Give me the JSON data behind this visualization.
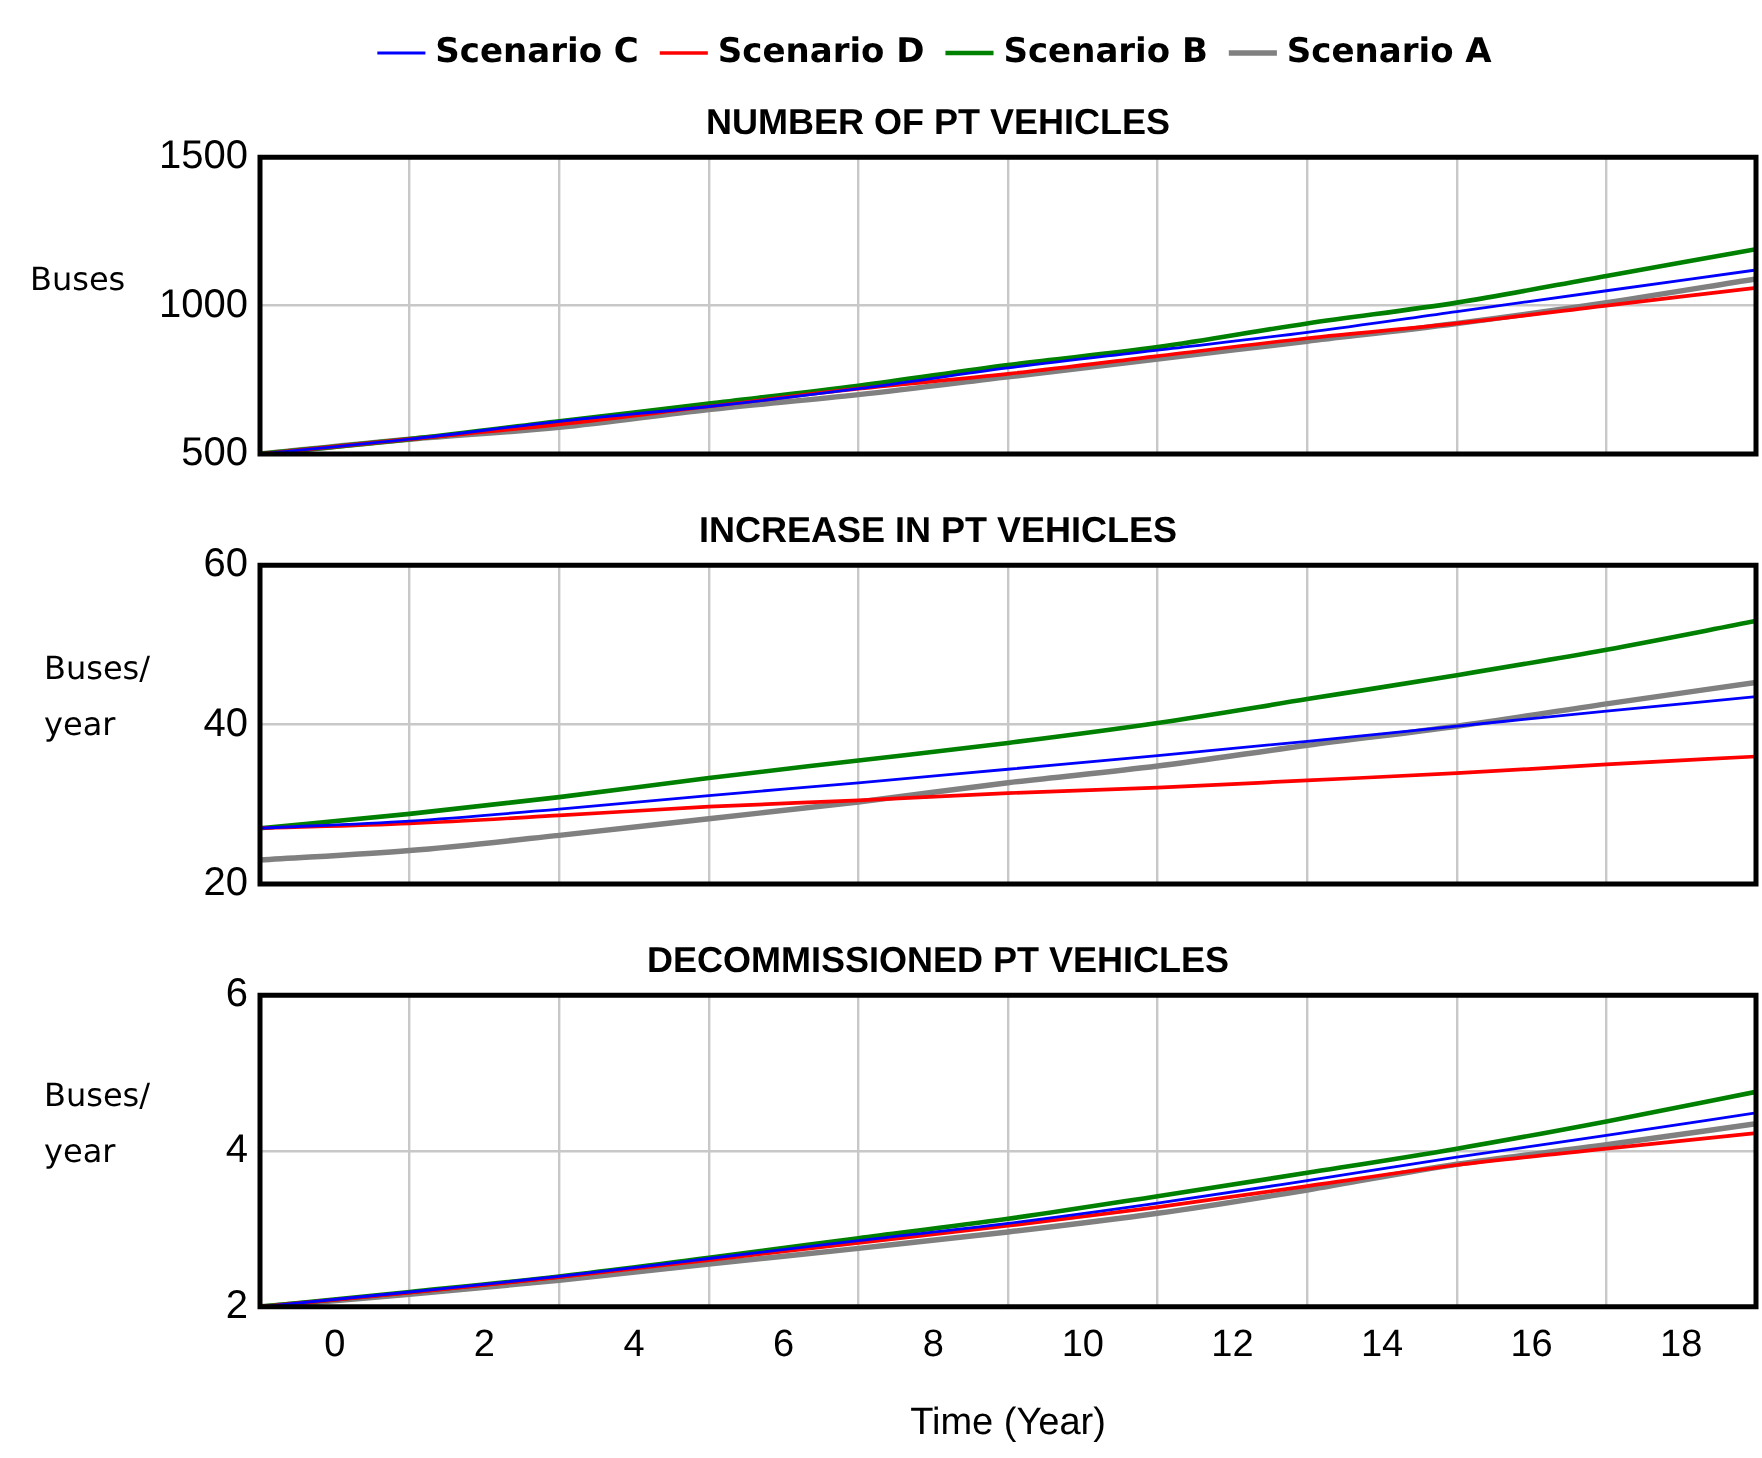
{
  "chart_data": [
    {
      "type": "line",
      "title": "NUMBER OF PT VEHICLES",
      "ylabel": "Buses",
      "x": [
        -1,
        1,
        3,
        5,
        7,
        9,
        11,
        13,
        15,
        17,
        19
      ],
      "xlim": [
        -1,
        19
      ],
      "xticks": [
        {
          "value": 1,
          "label": null
        },
        {
          "value": 3,
          "label": null
        },
        {
          "value": 5,
          "label": null
        },
        {
          "value": 7,
          "label": null
        },
        {
          "value": 9,
          "label": null
        },
        {
          "value": 11,
          "label": null
        },
        {
          "value": 13,
          "label": null
        },
        {
          "value": 15,
          "label": null
        },
        {
          "value": 17,
          "label": null
        }
      ],
      "ylim": [
        500,
        1500
      ],
      "yticks": [
        500,
        1000,
        1500
      ],
      "grid": true,
      "legend": "top",
      "tick_labels": "y",
      "line_style": "solid",
      "marker": "none",
      "series": [
        {
          "name": "Scenario C",
          "color": "#0000ff",
          "values": [
            500,
            550,
            610,
            660,
            720,
            790,
            850,
            910,
            980,
            1050,
            1120
          ]
        },
        {
          "name": "Scenario D",
          "color": "#ff0000",
          "values": [
            500,
            550,
            600,
            660,
            720,
            770,
            830,
            890,
            940,
            1000,
            1060
          ]
        },
        {
          "name": "Scenario B",
          "color": "#008000",
          "values": [
            500,
            550,
            610,
            670,
            730,
            800,
            860,
            940,
            1010,
            1100,
            1190
          ]
        },
        {
          "name": "Scenario A",
          "color": "#808080",
          "values": [
            500,
            550,
            590,
            650,
            700,
            760,
            820,
            880,
            940,
            1010,
            1090
          ]
        }
      ]
    },
    {
      "type": "line",
      "title": "INCREASE IN PT VEHICLES",
      "ylabel": "Buses/year",
      "x": [
        -1,
        1,
        3,
        5,
        7,
        9,
        11,
        13,
        15,
        17,
        19
      ],
      "xlim": [
        -1,
        19
      ],
      "xticks": [
        {
          "value": 1,
          "label": null
        },
        {
          "value": 3,
          "label": null
        },
        {
          "value": 5,
          "label": null
        },
        {
          "value": 7,
          "label": null
        },
        {
          "value": 9,
          "label": null
        },
        {
          "value": 11,
          "label": null
        },
        {
          "value": 13,
          "label": null
        },
        {
          "value": 15,
          "label": null
        },
        {
          "value": 17,
          "label": null
        }
      ],
      "ylim": [
        20,
        60
      ],
      "yticks": [
        20,
        40,
        60
      ],
      "grid": true,
      "tick_labels": "y",
      "line_style": "solid",
      "marker": "none",
      "series": [
        {
          "color": "#0000ff",
          "values": [
            27,
            27.9,
            29.4,
            31.1,
            32.7,
            34.4,
            36.1,
            37.9,
            39.8,
            41.7,
            43.5
          ]
        },
        {
          "color": "#ff0000",
          "values": [
            27,
            27.6,
            28.6,
            29.7,
            30.5,
            31.4,
            32.1,
            33,
            33.9,
            35,
            36
          ]
        },
        {
          "color": "#008000",
          "values": [
            27,
            28.8,
            30.9,
            33.3,
            35.5,
            37.7,
            40.2,
            43.2,
            46.2,
            49.4,
            53
          ]
        },
        {
          "color": "#808080",
          "values": [
            23,
            24.2,
            26.1,
            28.2,
            30.3,
            32.7,
            34.8,
            37.4,
            39.8,
            42.6,
            45.3
          ]
        }
      ]
    },
    {
      "type": "line",
      "title": "DECOMMISSIONED PT VEHICLES",
      "ylabel": "Buses/year",
      "xlabel": "Time (Year)",
      "x": [
        -1,
        1,
        3,
        5,
        7,
        9,
        11,
        13,
        15,
        17,
        19
      ],
      "xlim": [
        -1,
        19
      ],
      "xticks": [
        {
          "value": 0,
          "label": "0"
        },
        {
          "value": 1,
          "label": null
        },
        {
          "value": 2,
          "label": "2"
        },
        {
          "value": 3,
          "label": null
        },
        {
          "value": 4,
          "label": "4"
        },
        {
          "value": 5,
          "label": null
        },
        {
          "value": 6,
          "label": "6"
        },
        {
          "value": 7,
          "label": null
        },
        {
          "value": 8,
          "label": "8"
        },
        {
          "value": 9,
          "label": null
        },
        {
          "value": 10,
          "label": "10"
        },
        {
          "value": 11,
          "label": null
        },
        {
          "value": 12,
          "label": "12"
        },
        {
          "value": 13,
          "label": null
        },
        {
          "value": 14,
          "label": "14"
        },
        {
          "value": 15,
          "label": null
        },
        {
          "value": 16,
          "label": "16"
        },
        {
          "value": 17,
          "label": null
        },
        {
          "value": 18,
          "label": "18"
        }
      ],
      "ylim": [
        2,
        6
      ],
      "yticks": [
        2,
        4,
        6
      ],
      "grid": true,
      "line_style": "solid",
      "marker": "none",
      "series": [
        {
          "color": "#0000ff",
          "values": [
            2,
            2.19,
            2.39,
            2.62,
            2.85,
            3.07,
            3.33,
            3.62,
            3.92,
            4.2,
            4.49
          ]
        },
        {
          "color": "#ff0000",
          "values": [
            2,
            2.18,
            2.38,
            2.6,
            2.82,
            3.04,
            3.28,
            3.55,
            3.82,
            4.03,
            4.23
          ]
        },
        {
          "color": "#008000",
          "values": [
            2,
            2.19,
            2.39,
            2.63,
            2.88,
            3.13,
            3.42,
            3.72,
            4.03,
            4.38,
            4.76
          ]
        },
        {
          "color": "#808080",
          "values": [
            2,
            2.16,
            2.34,
            2.55,
            2.75,
            2.96,
            3.2,
            3.5,
            3.83,
            4.08,
            4.35
          ]
        }
      ]
    }
  ]
}
